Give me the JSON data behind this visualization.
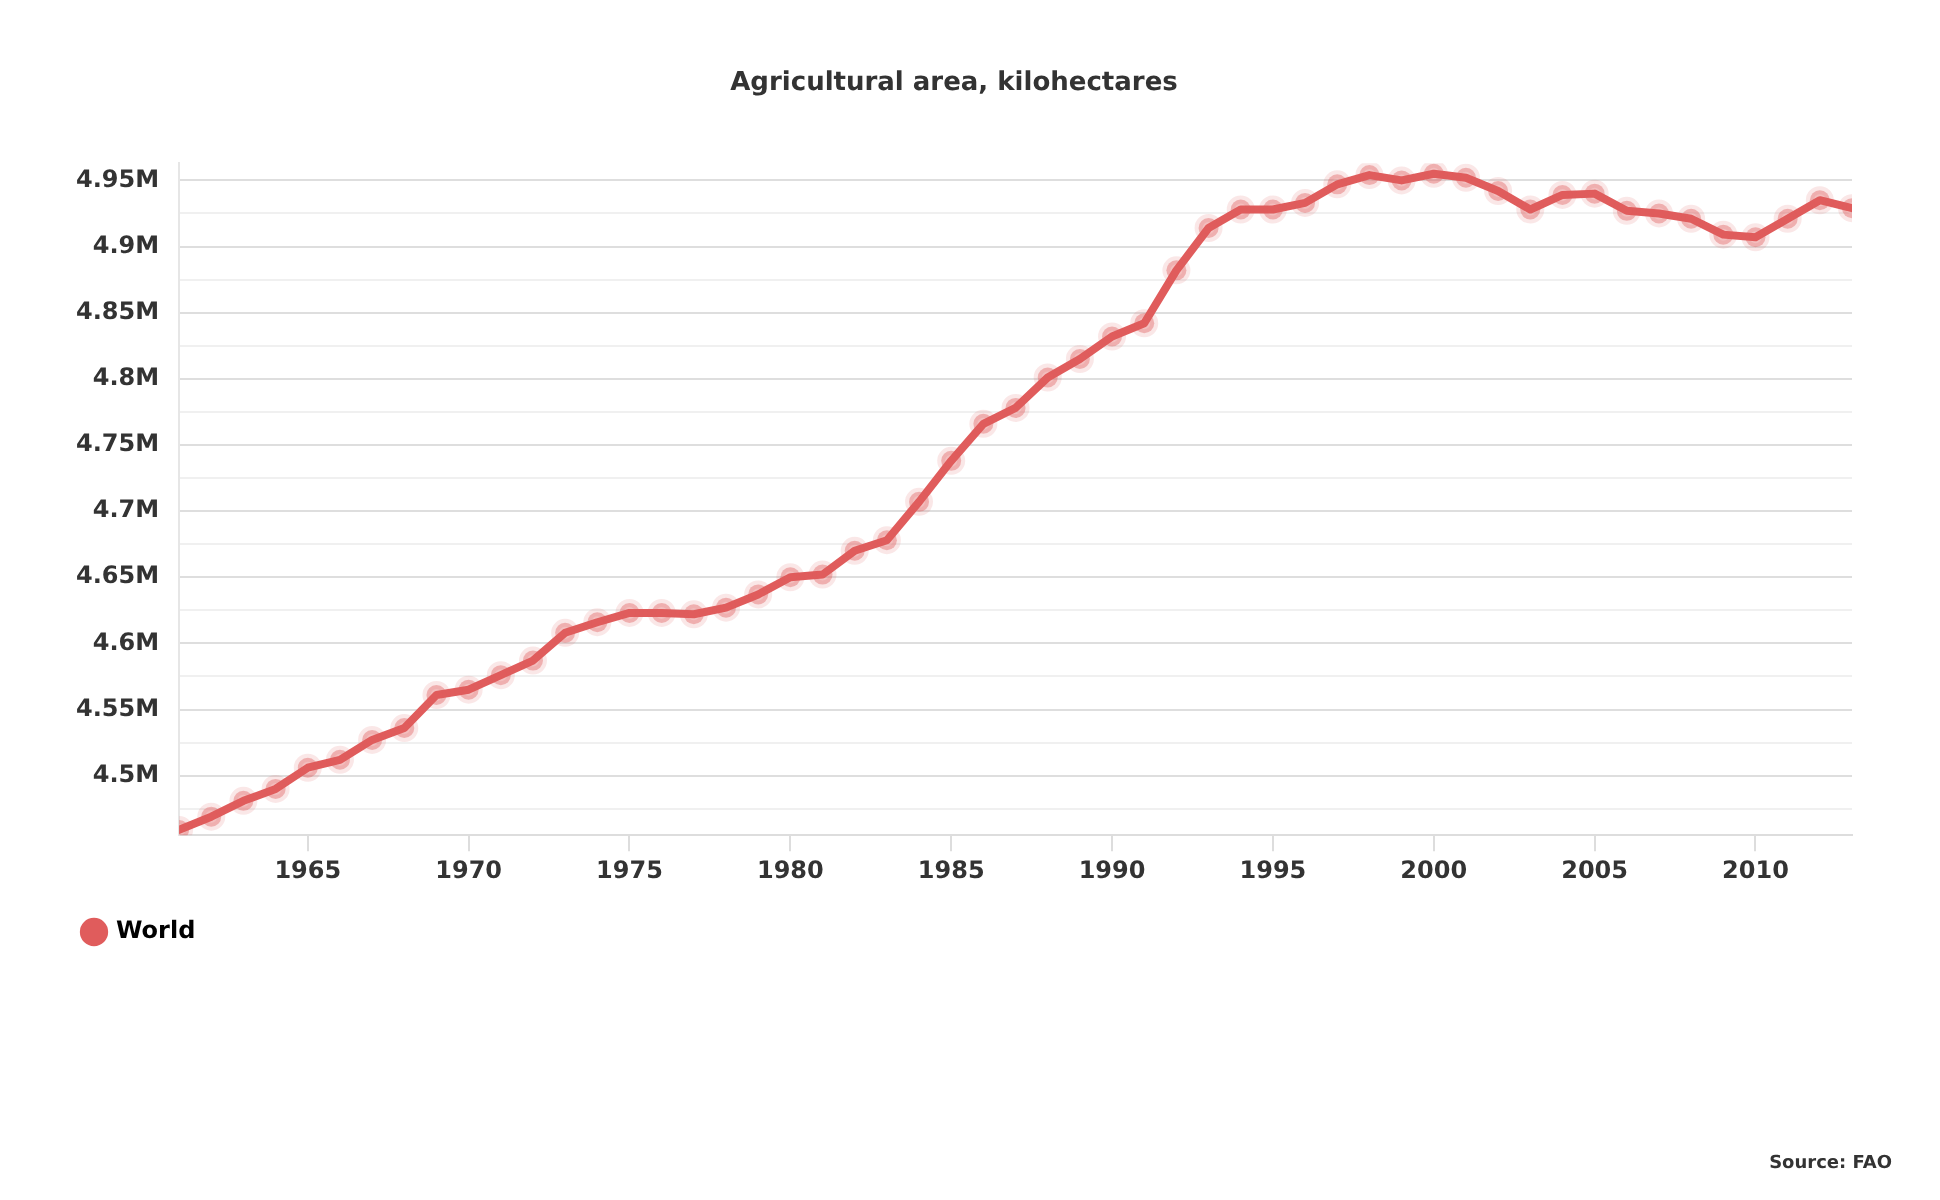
{
  "chart_data": {
    "type": "line",
    "title": "Agricultural area, kilohectares",
    "annotations": [
      "Source: FAO"
    ],
    "x": [
      1961,
      1962,
      1963,
      1964,
      1965,
      1966,
      1967,
      1968,
      1969,
      1970,
      1971,
      1972,
      1973,
      1974,
      1975,
      1976,
      1977,
      1978,
      1979,
      1980,
      1981,
      1982,
      1983,
      1984,
      1985,
      1986,
      1987,
      1988,
      1989,
      1990,
      1991,
      1992,
      1993,
      1994,
      1995,
      1996,
      1997,
      1998,
      1999,
      2000,
      2001,
      2002,
      2003,
      2004,
      2005,
      2006,
      2007,
      2008,
      2009,
      2010,
      2011,
      2012,
      2013
    ],
    "series": [
      {
        "name": "World",
        "color": "#e05c5c",
        "values": [
          4.459,
          4.469,
          4.481,
          4.49,
          4.506,
          4.512,
          4.527,
          4.536,
          4.561,
          4.565,
          4.576,
          4.587,
          4.608,
          4.616,
          4.623,
          4.623,
          4.622,
          4.627,
          4.637,
          4.65,
          4.652,
          4.67,
          4.678,
          4.707,
          4.738,
          4.766,
          4.778,
          4.801,
          4.815,
          4.832,
          4.842,
          4.882,
          4.914,
          4.928,
          4.928,
          4.933,
          4.947,
          4.954,
          4.95,
          4.955,
          4.952,
          4.942,
          4.928,
          4.939,
          4.94,
          4.927,
          4.925,
          4.921,
          4.909,
          4.907,
          4.921,
          4.935,
          4.929
        ]
      }
    ],
    "xlim": [
      1961,
      2013
    ],
    "xticks": [
      1965,
      1970,
      1975,
      1980,
      1985,
      1990,
      1995,
      2000,
      2005,
      2010
    ],
    "ylim": [
      4.455,
      4.963
    ],
    "yticks": [
      {
        "value": 4.475,
        "label": null
      },
      {
        "value": 4.5,
        "label": "4.5M"
      },
      {
        "value": 4.525,
        "label": null
      },
      {
        "value": 4.55,
        "label": "4.55M"
      },
      {
        "value": 4.575,
        "label": null
      },
      {
        "value": 4.6,
        "label": "4.6M"
      },
      {
        "value": 4.625,
        "label": null
      },
      {
        "value": 4.65,
        "label": "4.65M"
      },
      {
        "value": 4.675,
        "label": null
      },
      {
        "value": 4.7,
        "label": "4.7M"
      },
      {
        "value": 4.725,
        "label": null
      },
      {
        "value": 4.75,
        "label": "4.75M"
      },
      {
        "value": 4.775,
        "label": null
      },
      {
        "value": 4.8,
        "label": "4.8M"
      },
      {
        "value": 4.825,
        "label": null
      },
      {
        "value": 4.85,
        "label": "4.85M"
      },
      {
        "value": 4.875,
        "label": null
      },
      {
        "value": 4.9,
        "label": "4.9M"
      },
      {
        "value": 4.925,
        "label": null
      },
      {
        "value": 4.95,
        "label": "4.95M"
      }
    ],
    "grid": "y",
    "legend": "bottom left",
    "marker": "circle",
    "line_style": "solid"
  }
}
